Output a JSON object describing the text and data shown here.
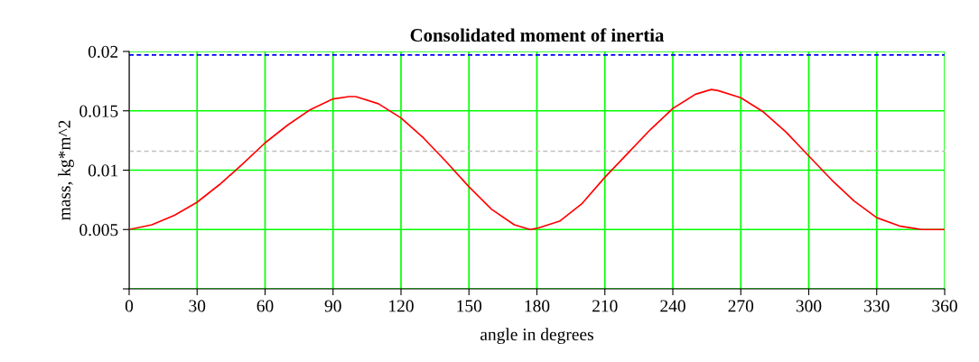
{
  "chart_data": {
    "type": "line",
    "title": "Consolidated moment of inertia",
    "xlabel": "angle in degrees",
    "ylabel": "mass, kg*m^2",
    "x": [
      0,
      10,
      20,
      30,
      40,
      50,
      60,
      70,
      80,
      90,
      97,
      100,
      110,
      120,
      130,
      140,
      150,
      160,
      170,
      177,
      180,
      190,
      200,
      210,
      220,
      230,
      240,
      250,
      257,
      260,
      270,
      280,
      290,
      300,
      310,
      320,
      330,
      340,
      350,
      360
    ],
    "series": [
      {
        "color": "#ff0000",
        "values": [
          0.005,
          0.0054,
          0.0062,
          0.0073,
          0.0088,
          0.0105,
          0.0123,
          0.0138,
          0.0151,
          0.016,
          0.0162,
          0.0162,
          0.0156,
          0.0144,
          0.0127,
          0.0107,
          0.0086,
          0.0067,
          0.0054,
          0.005,
          0.0051,
          0.0057,
          0.0072,
          0.0094,
          0.0114,
          0.0134,
          0.0152,
          0.0164,
          0.0168,
          0.0167,
          0.0161,
          0.0149,
          0.0132,
          0.0112,
          0.0092,
          0.0074,
          0.006,
          0.0053,
          0.005,
          0.005
        ]
      }
    ],
    "xlim": [
      0,
      360
    ],
    "xticks": [
      0,
      30,
      60,
      90,
      120,
      150,
      180,
      210,
      240,
      270,
      300,
      330,
      360
    ],
    "ylim": [
      0,
      0.02
    ],
    "yticks": [
      {
        "value": 0,
        "label": null
      },
      {
        "value": 0.005,
        "label": "0.005"
      },
      {
        "value": 0.01,
        "label": "0.01"
      },
      {
        "value": 0.015,
        "label": "0.015"
      },
      {
        "value": 0.02,
        "label": "0.02"
      }
    ],
    "ref_lines": [
      {
        "axis": "y",
        "value": 0.0197,
        "color": "#0000ff",
        "line_style": "dashed"
      },
      {
        "axis": "y",
        "value": 0.0116,
        "color": "#c0c0c0",
        "line_style": "dashed"
      }
    ],
    "grid": true,
    "marker": "none",
    "line_style": "solid",
    "legend": false
  }
}
